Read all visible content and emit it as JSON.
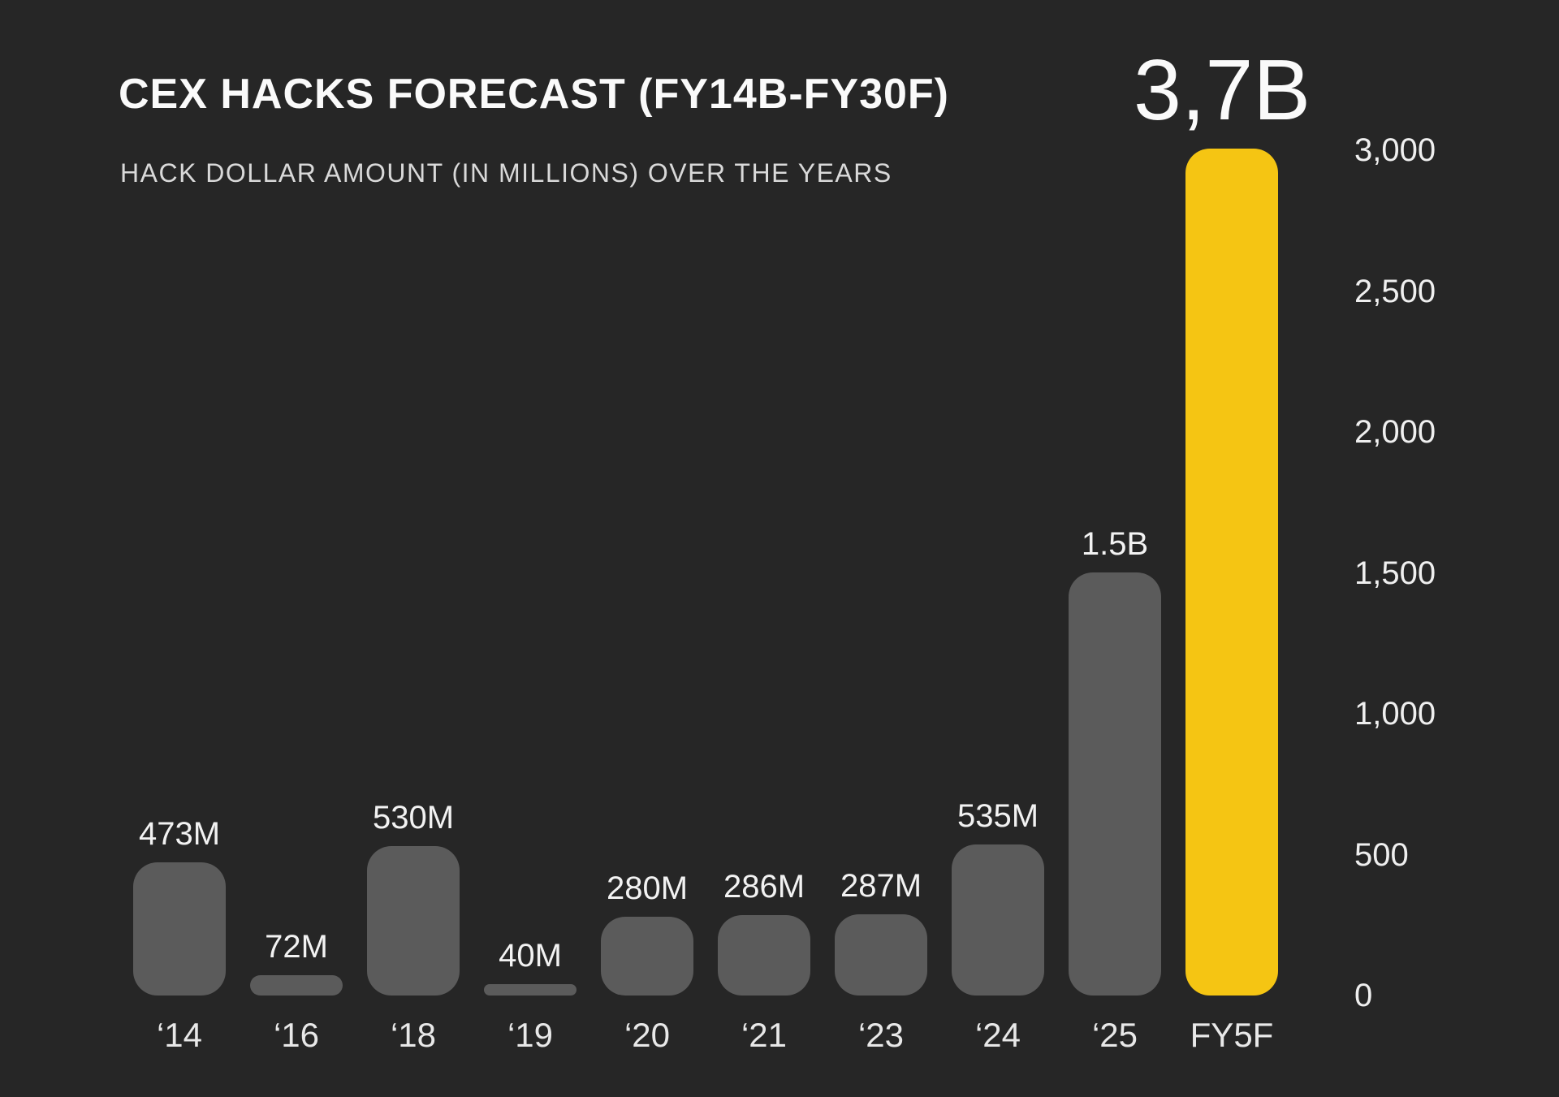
{
  "chart_data": {
    "type": "bar",
    "title": "CEX HACKS FORECAST (FY14B-FY30F)",
    "subtitle": "HACK DOLLAR AMOUNT (IN MILLIONS) OVER THE YEARS",
    "categories": [
      "‘14",
      "‘16",
      "‘18",
      "‘19",
      "‘20",
      "‘21",
      "‘23",
      "‘24",
      "‘25",
      "FY5F"
    ],
    "values": [
      473,
      72,
      530,
      40,
      280,
      286,
      287,
      535,
      1500,
      3700
    ],
    "bar_labels": [
      "473M",
      "72M",
      "530M",
      "40M",
      "280M",
      "286M",
      "287M",
      "535M",
      "1.5B",
      "3,7B"
    ],
    "highlight_index": 9,
    "highlight_label": "3,7B",
    "xlabel": "",
    "ylabel": "",
    "ylim": [
      0,
      3000
    ],
    "ytick_labels": [
      "3,000",
      "2,500",
      "2,000",
      "1,500",
      "1,000",
      "500",
      "0"
    ],
    "ytick_values": [
      3000,
      2500,
      2000,
      1500,
      1000,
      500,
      0
    ],
    "grid": "off",
    "legend": "none",
    "colors": {
      "background": "#262626",
      "bar": "#5b5b5b",
      "highlight": "#f5c513",
      "text_primary": "#fafafa",
      "text_secondary": "#d9d9d9"
    }
  }
}
